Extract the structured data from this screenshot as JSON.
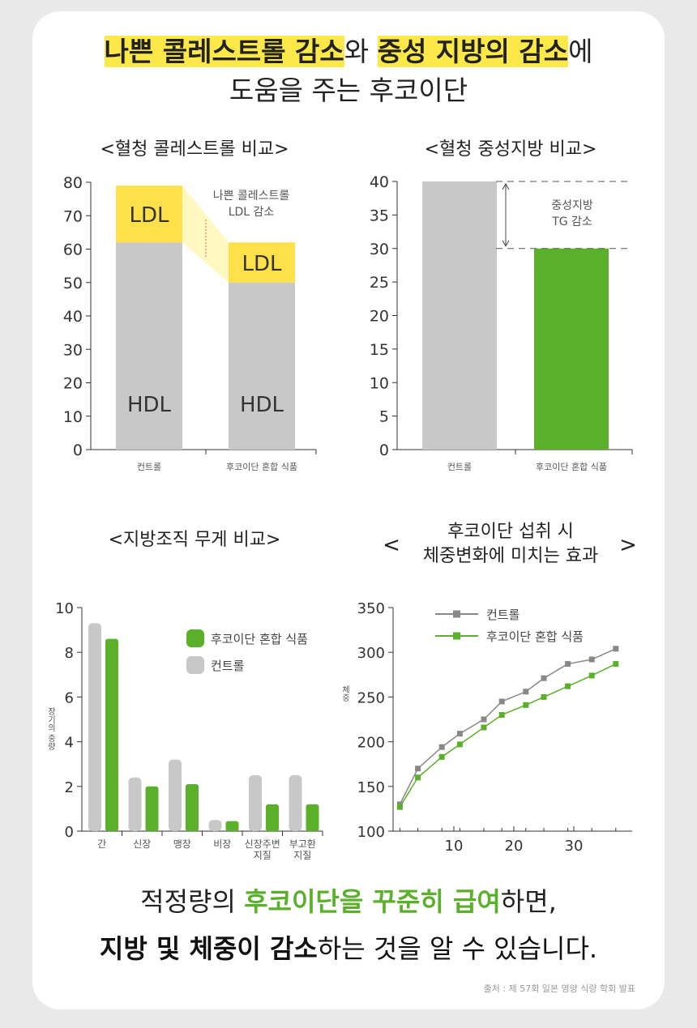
{
  "headline": {
    "part1": "나쁜 콜레스트롤 감소",
    "part2": "와 ",
    "part3": "중성 지방의 감소",
    "part4": "에",
    "line2": "도움을 주는 후코이단"
  },
  "chart_titles": {
    "c1": "<혈청 콜레스트롤 비교>",
    "c2": "<혈청 중성지방 비교>",
    "c3": "<지방조직 무게 비교>",
    "c4_bracket_l": "<",
    "c4_line1": "후코이단 섭취 시",
    "c4_line2": "체중변화에 미치는 효과",
    "c4_bracket_r": ">"
  },
  "bottom": {
    "l1a": "적정량의 ",
    "l1b": "후코이단을 꾸준히 급여",
    "l1c": "하면,",
    "l2a": "지방 및 체중이 감소",
    "l2b": "하는 것을 알 수 있습니다."
  },
  "source": "출처 : 제 57회 일본 영양 식량 학회 발표",
  "colors": {
    "ldl": "#fde04a",
    "hdl": "#c8c8c8",
    "green": "#5ab02a",
    "gray_line": "#888888"
  },
  "chart_data": [
    {
      "type": "bar",
      "categories": [
        "컨트롤",
        "후코이단 혼합 식품"
      ],
      "series": [
        {
          "name": "HDL",
          "values": [
            62,
            50
          ]
        },
        {
          "name": "LDL",
          "values": [
            17,
            12
          ]
        }
      ],
      "ylim": [
        0,
        80
      ],
      "yticks": [
        0,
        10,
        20,
        30,
        40,
        50,
        60,
        70,
        80
      ],
      "annotation": [
        "나쁜 콜레스트롤",
        "LDL 감소"
      ],
      "stacked": true
    },
    {
      "type": "bar",
      "categories": [
        "컨트롤",
        "후코이단 혼합 식품"
      ],
      "values": [
        40,
        30
      ],
      "ylim": [
        0,
        40
      ],
      "yticks": [
        0,
        5,
        10,
        15,
        20,
        25,
        30,
        35,
        40
      ],
      "annotation": [
        "중성지방",
        "TG 감소"
      ]
    },
    {
      "type": "bar",
      "categories": [
        [
          "간"
        ],
        [
          "신장"
        ],
        [
          "맹장"
        ],
        [
          "비장"
        ],
        [
          "신장주변",
          "지질"
        ],
        [
          "부고환",
          "지질"
        ]
      ],
      "series": [
        {
          "name": "컨트롤",
          "values": [
            9.3,
            2.4,
            3.2,
            0.5,
            2.5,
            2.5
          ]
        },
        {
          "name": "후코이단 혼합 식품",
          "values": [
            8.6,
            2.0,
            2.1,
            0.45,
            1.2,
            1.2
          ]
        }
      ],
      "ylim": [
        0,
        10
      ],
      "yticks": [
        0,
        2,
        4,
        6,
        8,
        10
      ],
      "ylabel": "장기의 중량",
      "legend": "top-right"
    },
    {
      "type": "line",
      "x": [
        1,
        4,
        8,
        11,
        15,
        18,
        22,
        25,
        29,
        33,
        37
      ],
      "series": [
        {
          "name": "컨트롤",
          "values": [
            130,
            170,
            194,
            209,
            225,
            245,
            256,
            271,
            287,
            292,
            304
          ]
        },
        {
          "name": "후코이단 혼합 식품",
          "values": [
            127,
            160,
            183,
            197,
            216,
            230,
            241,
            250,
            262,
            274,
            287
          ]
        }
      ],
      "xticks": [
        10,
        20,
        30
      ],
      "ylim": [
        100,
        350
      ],
      "yticks": [
        100,
        150,
        200,
        250,
        300,
        350
      ],
      "ylabel": "체중",
      "legend": "top-left"
    }
  ]
}
